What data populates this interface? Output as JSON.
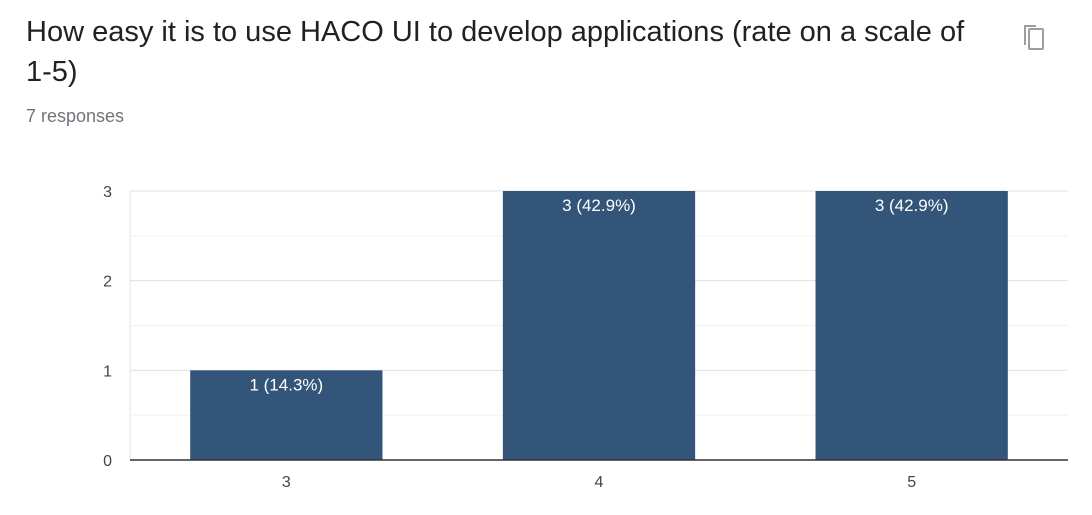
{
  "question": {
    "title": "How easy it is to use HACO UI to develop applications (rate on a scale of 1-5)",
    "responses": "7 responses"
  },
  "icons": {
    "copy": "copy-icon"
  },
  "colors": {
    "bar": "#335579",
    "title": "#202124",
    "muted": "#70757a",
    "grid": "#e6e6e6",
    "axis": "#333333"
  },
  "chart_data": {
    "type": "bar",
    "categories": [
      "3",
      "4",
      "5"
    ],
    "values": [
      1,
      3,
      3
    ],
    "data_labels": [
      "1 (14.3%)",
      "3 (42.9%)",
      "3 (42.9%)"
    ],
    "y_ticks": [
      "0",
      "1",
      "2",
      "3"
    ],
    "ylim": [
      0,
      3
    ],
    "grid": true,
    "title": "",
    "xlabel": "",
    "ylabel": ""
  }
}
